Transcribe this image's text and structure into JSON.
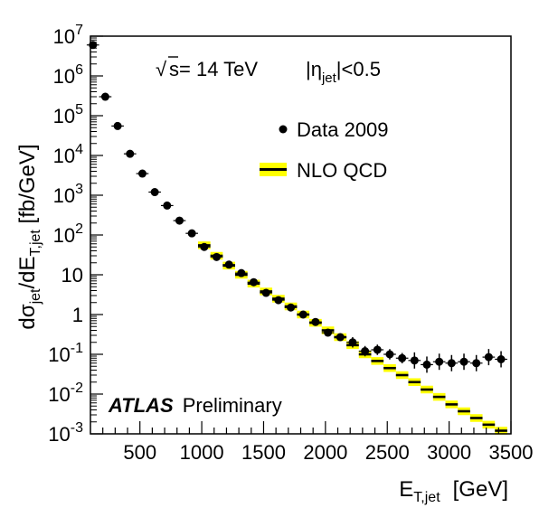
{
  "chart_data": {
    "type": "scatter",
    "xaxis": {
      "label_main": "E",
      "label_sub": "T,jet",
      "label_unit": "[GeV]",
      "range": [
        100,
        3500
      ],
      "ticks": [
        500,
        1000,
        1500,
        2000,
        2500,
        3000,
        3500
      ],
      "tick_labels": [
        "500",
        "1000",
        "1500",
        "2000",
        "2500",
        "3000",
        "3500"
      ]
    },
    "yaxis": {
      "label": "dσjet/dET,jet [fb/GeV]",
      "label_parts": [
        "d",
        "σ",
        "jet",
        "/dE",
        "T,jet",
        " [fb/GeV]"
      ],
      "scale": "log",
      "range": [
        0.001,
        10000000
      ],
      "ticks": [
        0.001,
        0.01,
        0.1,
        1,
        10,
        100,
        1000,
        10000,
        100000,
        1000000,
        10000000
      ],
      "tick_labels": [
        {
          "base": "10",
          "exp": "-3"
        },
        {
          "base": "10",
          "exp": "-2"
        },
        {
          "base": "10",
          "exp": "-1"
        },
        {
          "base": "1",
          "exp": ""
        },
        {
          "base": "10",
          "exp": ""
        },
        {
          "base": "10",
          "exp": "2"
        },
        {
          "base": "10",
          "exp": "3"
        },
        {
          "base": "10",
          "exp": "4"
        },
        {
          "base": "10",
          "exp": "5"
        },
        {
          "base": "10",
          "exp": "6"
        },
        {
          "base": "10",
          "exp": "7"
        }
      ]
    },
    "series": [
      {
        "name": "Data 2009",
        "style": "points",
        "color": "#000000",
        "points": [
          {
            "x": 120,
            "y": 6000000
          },
          {
            "x": 220,
            "y": 300000
          },
          {
            "x": 320,
            "y": 55000
          },
          {
            "x": 420,
            "y": 11000
          },
          {
            "x": 520,
            "y": 3500
          },
          {
            "x": 620,
            "y": 1200
          },
          {
            "x": 720,
            "y": 550
          },
          {
            "x": 820,
            "y": 230
          },
          {
            "x": 920,
            "y": 110
          },
          {
            "x": 1020,
            "y": 50
          },
          {
            "x": 1120,
            "y": 28
          },
          {
            "x": 1220,
            "y": 18
          },
          {
            "x": 1320,
            "y": 11
          },
          {
            "x": 1420,
            "y": 6.5
          },
          {
            "x": 1520,
            "y": 3.5
          },
          {
            "x": 1620,
            "y": 2.3
          },
          {
            "x": 1720,
            "y": 1.5
          },
          {
            "x": 1820,
            "y": 1.0
          },
          {
            "x": 1920,
            "y": 0.65
          },
          {
            "x": 2020,
            "y": 0.35
          },
          {
            "x": 2120,
            "y": 0.27
          },
          {
            "x": 2220,
            "y": 0.2
          },
          {
            "x": 2320,
            "y": 0.12
          },
          {
            "x": 2420,
            "y": 0.13
          },
          {
            "x": 2520,
            "y": 0.1
          },
          {
            "x": 2620,
            "y": 0.08
          },
          {
            "x": 2720,
            "y": 0.07
          },
          {
            "x": 2820,
            "y": 0.055
          },
          {
            "x": 2920,
            "y": 0.065
          },
          {
            "x": 3020,
            "y": 0.06
          },
          {
            "x": 3120,
            "y": 0.065
          },
          {
            "x": 3220,
            "y": 0.06
          },
          {
            "x": 3320,
            "y": 0.085
          },
          {
            "x": 3420,
            "y": 0.075
          }
        ]
      },
      {
        "name": "NLO QCD",
        "style": "band",
        "color": "#000000",
        "band_color": "#ffff00",
        "points": [
          {
            "x": 1020,
            "y": 55
          },
          {
            "x": 1120,
            "y": 30
          },
          {
            "x": 1220,
            "y": 17
          },
          {
            "x": 1320,
            "y": 10
          },
          {
            "x": 1420,
            "y": 6
          },
          {
            "x": 1520,
            "y": 3.8
          },
          {
            "x": 1620,
            "y": 2.5
          },
          {
            "x": 1720,
            "y": 1.6
          },
          {
            "x": 1820,
            "y": 1.0
          },
          {
            "x": 1920,
            "y": 0.62
          },
          {
            "x": 2020,
            "y": 0.4
          },
          {
            "x": 2120,
            "y": 0.27
          },
          {
            "x": 2220,
            "y": 0.17
          },
          {
            "x": 2320,
            "y": 0.1
          },
          {
            "x": 2420,
            "y": 0.068
          },
          {
            "x": 2520,
            "y": 0.045
          },
          {
            "x": 2620,
            "y": 0.03
          },
          {
            "x": 2720,
            "y": 0.02
          },
          {
            "x": 2820,
            "y": 0.013
          },
          {
            "x": 2920,
            "y": 0.0085
          },
          {
            "x": 3020,
            "y": 0.0055
          },
          {
            "x": 3120,
            "y": 0.0037
          },
          {
            "x": 3220,
            "y": 0.0025
          },
          {
            "x": 3320,
            "y": 0.0017
          },
          {
            "x": 3420,
            "y": 0.0012
          }
        ]
      }
    ],
    "annotations": {
      "energy": {
        "sqrt": "√",
        "text": "s= 14 TeV"
      },
      "eta_cut": {
        "pre": "|η",
        "sub": "jet",
        "post": "|<0.5"
      },
      "experiment": "ATLAS",
      "status": "Preliminary"
    },
    "legend": {
      "placement": "top-right",
      "entries": [
        {
          "label": "Data 2009",
          "marker": "point"
        },
        {
          "label": "NLO QCD",
          "marker": "band"
        }
      ]
    },
    "grid": false
  }
}
